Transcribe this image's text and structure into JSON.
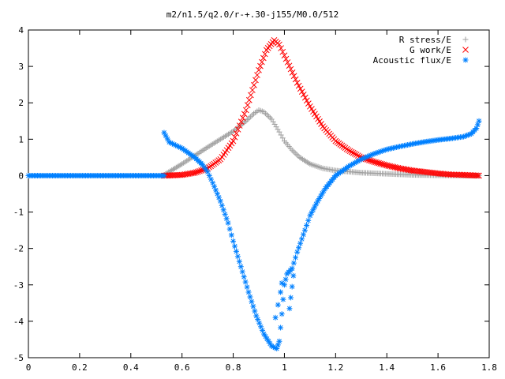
{
  "chart_data": {
    "type": "scatter",
    "title": "m2/n1.5/q2.0/r-+.30-j155/M0.0/512",
    "xlabel": "",
    "ylabel": "",
    "xlim": [
      0,
      1.8
    ],
    "ylim": [
      -5,
      4
    ],
    "xticks": [
      "0",
      "0.2",
      "0.4",
      "0.6",
      "0.8",
      "1",
      "1.2",
      "1.4",
      "1.6",
      "1.8"
    ],
    "yticks": [
      "4",
      "3",
      "2",
      "1",
      "0",
      "-1",
      "-2",
      "-3",
      "-4",
      "-5"
    ],
    "grid": false,
    "legend_position": "top-right",
    "series": [
      {
        "name": "R stress/E",
        "marker": "+",
        "color": "#a0a0a0",
        "points": [
          [
            0.53,
            0.02
          ],
          [
            0.56,
            0.15
          ],
          [
            0.6,
            0.32
          ],
          [
            0.65,
            0.55
          ],
          [
            0.7,
            0.78
          ],
          [
            0.75,
            1.0
          ],
          [
            0.8,
            1.22
          ],
          [
            0.85,
            1.5
          ],
          [
            0.88,
            1.7
          ],
          [
            0.9,
            1.8
          ],
          [
            0.92,
            1.75
          ],
          [
            0.95,
            1.55
          ],
          [
            0.98,
            1.2
          ],
          [
            1.0,
            0.95
          ],
          [
            1.03,
            0.7
          ],
          [
            1.06,
            0.5
          ],
          [
            1.1,
            0.32
          ],
          [
            1.15,
            0.2
          ],
          [
            1.2,
            0.14
          ],
          [
            1.3,
            0.08
          ],
          [
            1.4,
            0.05
          ],
          [
            1.5,
            0.02
          ],
          [
            1.6,
            0.01
          ],
          [
            1.7,
            0.0
          ],
          [
            1.76,
            0.0
          ]
        ]
      },
      {
        "name": "G work/E",
        "marker": "x",
        "color": "#ff0000",
        "points": [
          [
            0.53,
            0.0
          ],
          [
            0.6,
            0.02
          ],
          [
            0.65,
            0.08
          ],
          [
            0.7,
            0.2
          ],
          [
            0.75,
            0.45
          ],
          [
            0.8,
            0.95
          ],
          [
            0.85,
            1.8
          ],
          [
            0.9,
            2.9
          ],
          [
            0.93,
            3.45
          ],
          [
            0.96,
            3.72
          ],
          [
            0.98,
            3.6
          ],
          [
            1.0,
            3.3
          ],
          [
            1.05,
            2.55
          ],
          [
            1.1,
            1.9
          ],
          [
            1.15,
            1.35
          ],
          [
            1.2,
            0.95
          ],
          [
            1.25,
            0.7
          ],
          [
            1.3,
            0.5
          ],
          [
            1.35,
            0.38
          ],
          [
            1.4,
            0.28
          ],
          [
            1.45,
            0.2
          ],
          [
            1.5,
            0.14
          ],
          [
            1.55,
            0.1
          ],
          [
            1.6,
            0.06
          ],
          [
            1.65,
            0.03
          ],
          [
            1.7,
            0.02
          ],
          [
            1.76,
            0.0
          ]
        ]
      },
      {
        "name": "Acoustic flux/E",
        "marker": "*",
        "color": "#0080ff",
        "points": [
          [
            0.0,
            0.0
          ],
          [
            0.1,
            0.0
          ],
          [
            0.2,
            0.0
          ],
          [
            0.3,
            0.0
          ],
          [
            0.4,
            0.0
          ],
          [
            0.5,
            0.0
          ],
          [
            0.53,
            0.0
          ],
          [
            0.53,
            1.18
          ],
          [
            0.55,
            0.92
          ],
          [
            0.6,
            0.75
          ],
          [
            0.65,
            0.5
          ],
          [
            0.68,
            0.3
          ],
          [
            0.7,
            0.1
          ],
          [
            0.72,
            -0.2
          ],
          [
            0.75,
            -0.7
          ],
          [
            0.78,
            -1.3
          ],
          [
            0.8,
            -1.8
          ],
          [
            0.83,
            -2.5
          ],
          [
            0.86,
            -3.2
          ],
          [
            0.89,
            -3.85
          ],
          [
            0.92,
            -4.35
          ],
          [
            0.95,
            -4.68
          ],
          [
            0.97,
            -4.75
          ],
          [
            0.98,
            -4.55
          ],
          [
            0.99,
            -3.8
          ],
          [
            1.0,
            -3.0
          ],
          [
            1.01,
            -2.7
          ],
          [
            1.03,
            -2.55
          ],
          [
            1.05,
            -2.1
          ],
          [
            1.08,
            -1.5
          ],
          [
            1.1,
            -1.1
          ],
          [
            1.13,
            -0.7
          ],
          [
            1.16,
            -0.35
          ],
          [
            1.2,
            0.0
          ],
          [
            1.25,
            0.25
          ],
          [
            1.3,
            0.45
          ],
          [
            1.35,
            0.6
          ],
          [
            1.4,
            0.72
          ],
          [
            1.45,
            0.8
          ],
          [
            1.5,
            0.87
          ],
          [
            1.55,
            0.93
          ],
          [
            1.6,
            0.98
          ],
          [
            1.65,
            1.02
          ],
          [
            1.7,
            1.07
          ],
          [
            1.73,
            1.15
          ],
          [
            1.75,
            1.3
          ],
          [
            1.76,
            1.5
          ]
        ],
        "annotation_points": [
          [
            0.965,
            -3.9
          ],
          [
            0.975,
            -3.55
          ],
          [
            0.985,
            -3.2
          ],
          [
            0.99,
            -2.95
          ],
          [
            1.02,
            -3.65
          ],
          [
            1.025,
            -3.35
          ],
          [
            1.03,
            -3.05
          ],
          [
            1.035,
            -2.75
          ]
        ]
      }
    ]
  }
}
